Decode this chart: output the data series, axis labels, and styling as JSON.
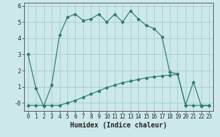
{
  "line1_x": [
    0,
    1,
    2,
    3,
    4,
    5,
    6,
    7,
    8,
    9,
    10,
    11,
    12,
    13,
    14,
    15,
    16,
    17,
    18,
    19,
    20,
    21,
    22,
    23
  ],
  "line1_y": [
    3.0,
    0.9,
    -0.2,
    1.1,
    4.2,
    5.3,
    5.5,
    5.1,
    5.2,
    5.5,
    5.0,
    5.5,
    5.0,
    5.7,
    5.2,
    4.8,
    4.6,
    4.1,
    1.9,
    1.8,
    -0.15,
    1.3,
    -0.2,
    -0.15
  ],
  "line2_x": [
    0,
    1,
    2,
    3,
    4,
    5,
    6,
    7,
    8,
    9,
    10,
    11,
    12,
    13,
    14,
    15,
    16,
    17,
    18,
    19,
    20,
    21,
    22,
    23
  ],
  "line2_y": [
    -0.15,
    -0.15,
    -0.15,
    -0.15,
    -0.15,
    0.0,
    0.15,
    0.35,
    0.55,
    0.75,
    0.95,
    1.1,
    1.25,
    1.35,
    1.45,
    1.55,
    1.62,
    1.67,
    1.72,
    1.77,
    -0.15,
    -0.15,
    -0.15,
    -0.15
  ],
  "line_color": "#2e7d6e",
  "bg_color": "#cce8ea",
  "grid_color": "#aacfcf",
  "ylim": [
    -0.5,
    6.2
  ],
  "xlim": [
    -0.5,
    23.5
  ],
  "yticks": [
    0,
    1,
    2,
    3,
    4,
    5,
    6
  ],
  "ytick_labels": [
    "-0",
    "1",
    "2",
    "3",
    "4",
    "5",
    "6"
  ],
  "xtick_labels": [
    "0",
    "1",
    "2",
    "3",
    "4",
    "5",
    "6",
    "7",
    "8",
    "9",
    "10",
    "11",
    "12",
    "13",
    "14",
    "15",
    "16",
    "17",
    "18",
    "19",
    "20",
    "21",
    "22",
    "23"
  ],
  "xlabel": "Humidex (Indice chaleur)",
  "marker": "D",
  "markersize": 2.0,
  "linewidth": 0.9
}
